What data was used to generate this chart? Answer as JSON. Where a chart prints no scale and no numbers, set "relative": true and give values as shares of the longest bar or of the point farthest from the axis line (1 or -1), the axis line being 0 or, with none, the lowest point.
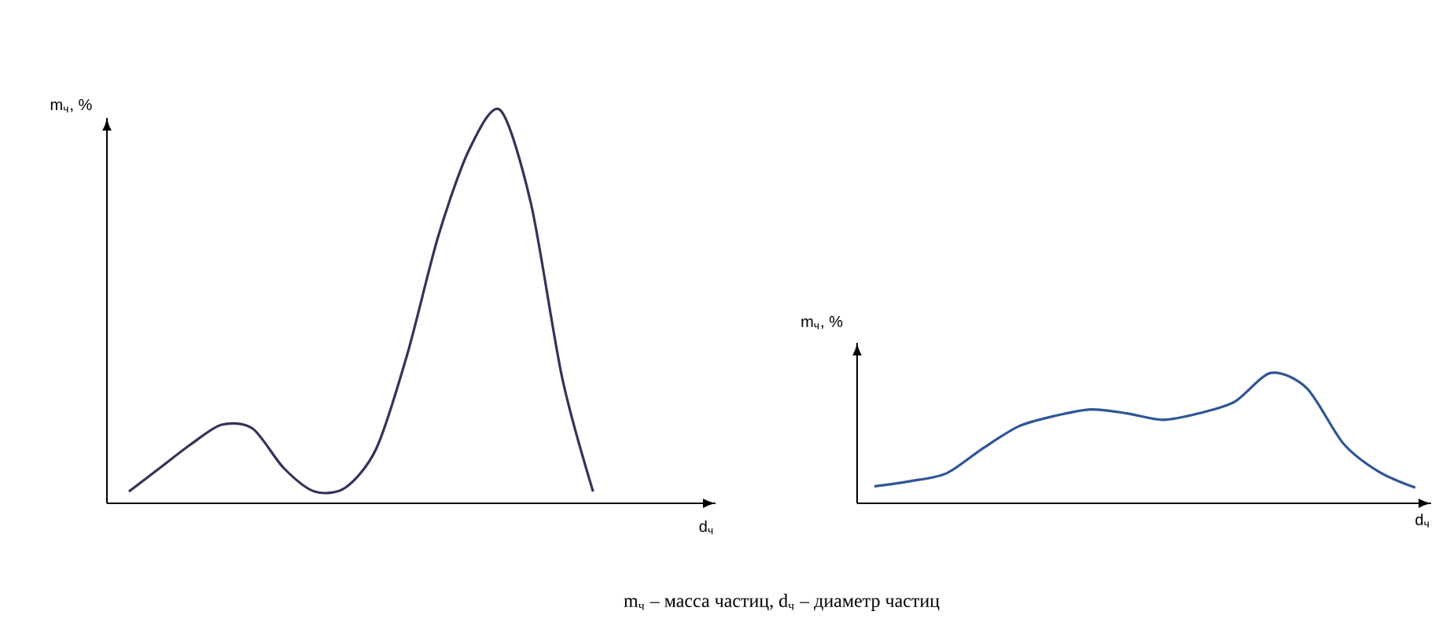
{
  "chart_data": [
    {
      "type": "line",
      "relative": true,
      "ylabel": "m$_{ч}$, %",
      "xlabel": "d$_{ч}$",
      "tick_labels": false,
      "marker": "none",
      "line_style": "solid",
      "categories": [
        null,
        null,
        null,
        null,
        null,
        null,
        null,
        null,
        null,
        null,
        null,
        null,
        null,
        null,
        null,
        null
      ],
      "series": [
        {
          "color": "#3b2f5a",
          "values": [
            0.03,
            0.09,
            0.15,
            0.2,
            0.19,
            0.09,
            0.03,
            0.04,
            0.14,
            0.38,
            0.68,
            0.9,
            1.0,
            0.76,
            0.32,
            0.03
          ]
        }
      ],
      "annotations": [
        "m$_{ч}$ – масса частиц, d$_{ч}$ – диаметр частиц"
      ]
    },
    {
      "type": "line",
      "relative": true,
      "ylabel": "m$_{ч}$, %",
      "xlabel": "d$_{ч}$",
      "tick_labels": false,
      "marker": "none",
      "line_style": "solid",
      "categories": [
        null,
        null,
        null,
        null,
        null,
        null,
        null,
        null,
        null,
        null,
        null,
        null,
        null,
        null,
        null,
        null
      ],
      "series": [
        {
          "color": "#2f5597",
          "values": [
            0.13,
            0.17,
            0.23,
            0.42,
            0.59,
            0.67,
            0.72,
            0.69,
            0.64,
            0.69,
            0.78,
            1.0,
            0.88,
            0.46,
            0.24,
            0.12
          ]
        }
      ]
    }
  ]
}
